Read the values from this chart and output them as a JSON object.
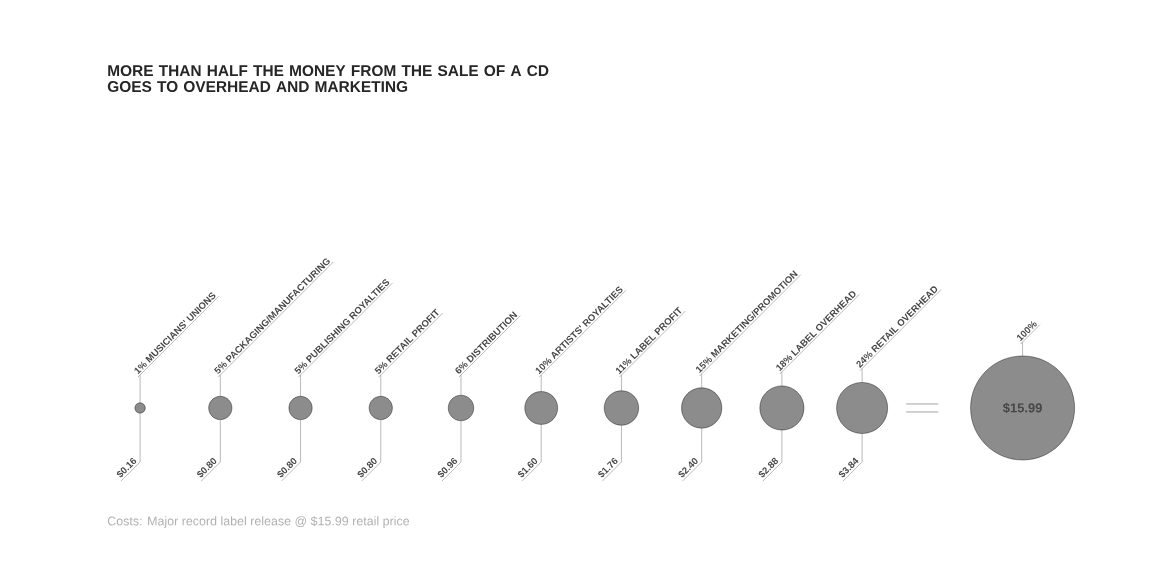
{
  "chart_data": {
    "type": "other",
    "title": "MORE THAN HALF THE MONEY FROM THE SALE OF A CD GOES TO OVERHEAD AND MARKETING",
    "categories": [
      "1% MUSICIANS' UNIONS",
      "5% PACKAGING/MANUFACTURING",
      "5% PUBLISHING ROYALTIES",
      "5% RETAIL PROFIT",
      "6% DISTRIBUTION",
      "10% ARTISTS' ROYALTIES",
      "11% LABEL PROFIT",
      "15% MARKETING/PROMOTION",
      "18% LABEL OVERHEAD",
      "24% RETAIL OVERHEAD",
      "100%"
    ],
    "values": [
      0.16,
      0.8,
      0.8,
      0.8,
      0.96,
      1.6,
      1.76,
      2.4,
      2.88,
      3.84,
      15.99
    ],
    "value_labels": [
      "$0.16",
      "$0.80",
      "$0.80",
      "$0.80",
      "$0.96",
      "$1.60",
      "$1.76",
      "$2.40",
      "$2.88",
      "$3.84",
      "$15.99"
    ],
    "color": "#8c8c8c",
    "annotations": [
      "Costs: Major record label release @ $15.99 retail price"
    ]
  }
}
